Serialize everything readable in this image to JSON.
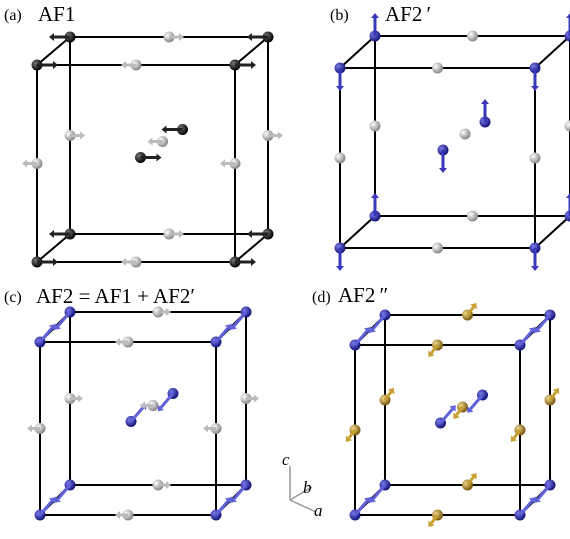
{
  "panels": [
    {
      "tag": "(a)",
      "title": "AF1"
    },
    {
      "tag": "(b)",
      "title": "AF2 ′"
    },
    {
      "tag": "(c)",
      "title": "AF2 = AF1 + AF2′"
    },
    {
      "tag": "(d)",
      "title": "AF2 ″"
    }
  ],
  "axes": {
    "c": "c",
    "b": "b",
    "a": "a"
  }
}
